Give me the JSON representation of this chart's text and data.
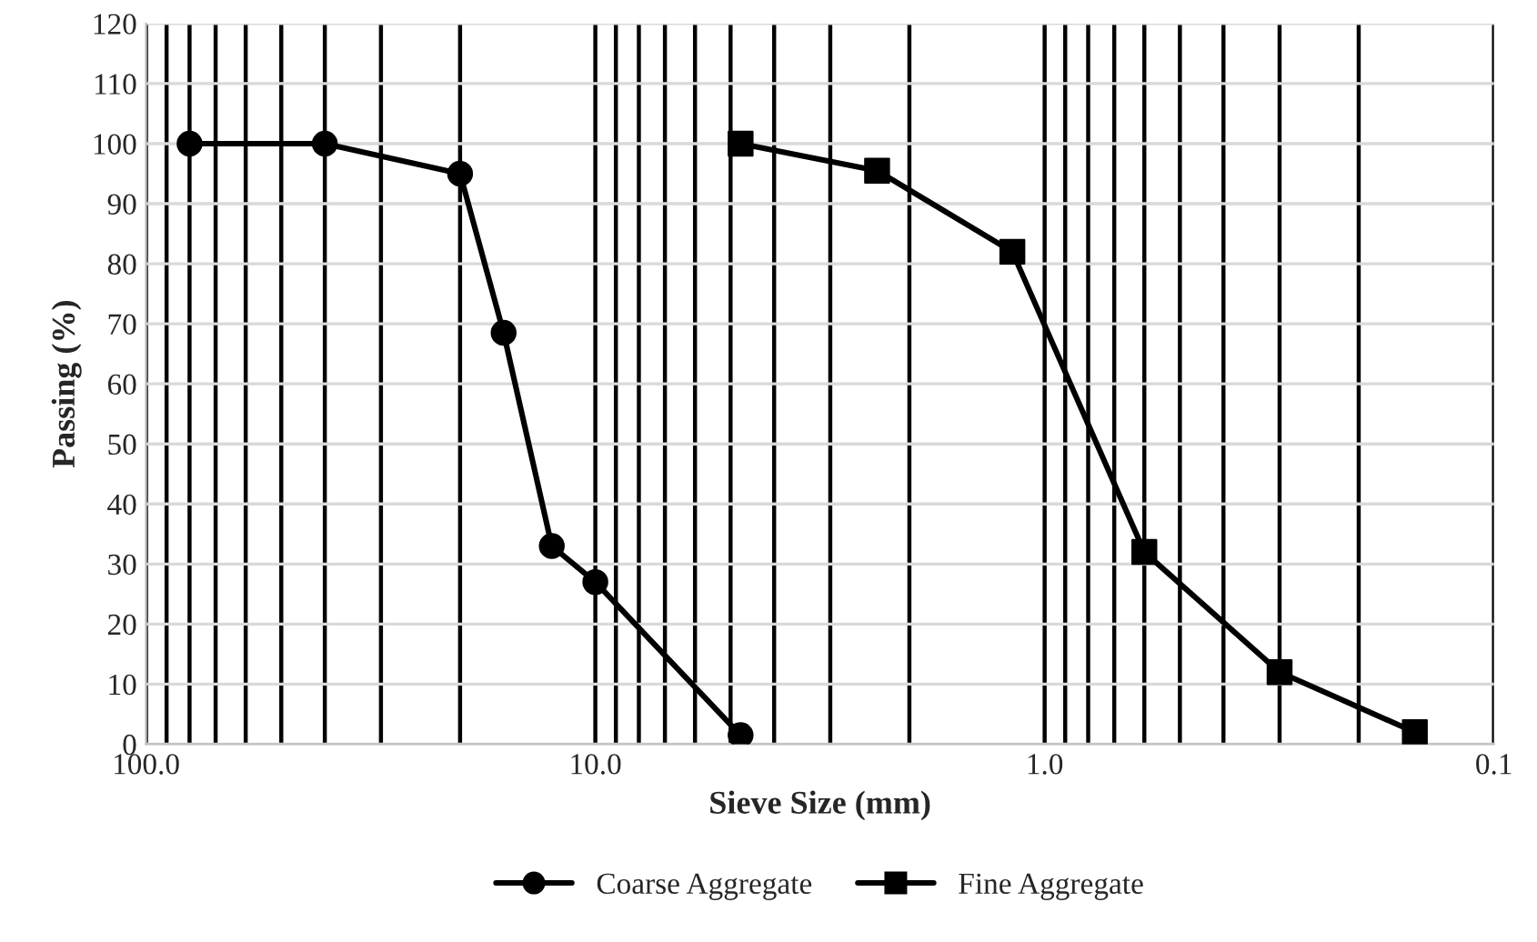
{
  "chart_data": {
    "type": "line",
    "xlabel": "Sieve Size (mm)",
    "ylabel": "Passing (%)",
    "log": "x",
    "xlim": [
      100,
      0.1
    ],
    "xticks": [
      {
        "value": 100,
        "label": "100.0"
      },
      {
        "value": 10,
        "label": "10.0"
      },
      {
        "value": 1,
        "label": "1.0"
      },
      {
        "value": 0.1,
        "label": "0.1"
      }
    ],
    "ylim": [
      0,
      120
    ],
    "yticks": [
      0,
      10,
      20,
      30,
      40,
      50,
      60,
      70,
      80,
      90,
      100,
      110,
      120
    ],
    "grid": true,
    "legend": "bottom",
    "line_style": "solid",
    "series": [
      {
        "name": "Coarse Aggregate",
        "color": "#000000",
        "marker": "circle",
        "x": [
          80,
          40,
          20,
          16,
          12.5,
          10,
          4.75
        ],
        "values": [
          100,
          100,
          95,
          68.5,
          33,
          27,
          1.5
        ]
      },
      {
        "name": "Fine Aggregate",
        "color": "#000000",
        "marker": "square",
        "x": [
          4.75,
          2.36,
          1.18,
          0.6,
          0.3,
          0.15
        ],
        "values": [
          100,
          95.5,
          82,
          32,
          12,
          2
        ]
      }
    ]
  }
}
